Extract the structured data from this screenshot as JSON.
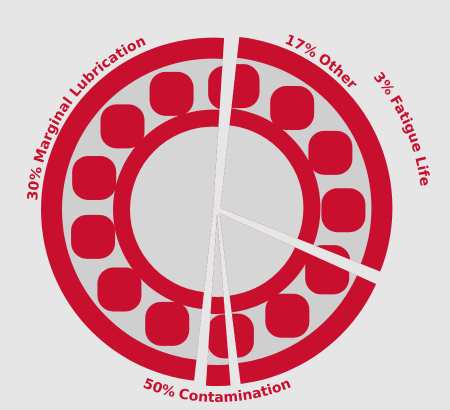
{
  "chart_data": {
    "type": "pie",
    "categories": [
      "Marginal Lubrication",
      "Other",
      "Fatigue Life",
      "Contamination"
    ],
    "values": [
      30,
      17,
      3,
      50
    ],
    "value_labels": [
      "30%",
      "17%",
      "3%",
      "50%"
    ],
    "color": "#c8102e"
  }
}
